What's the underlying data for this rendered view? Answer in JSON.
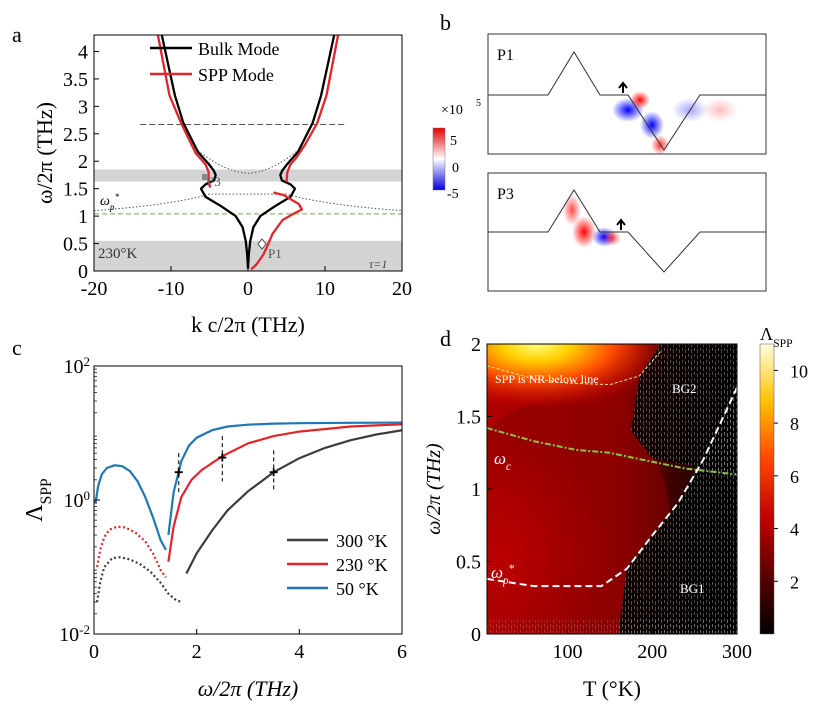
{
  "chart_data": [
    {
      "panel": "a",
      "type": "line",
      "xlabel": "k c/2π (THz)",
      "ylabel": "ω/2π (THz)",
      "xlim": [
        -20,
        20
      ],
      "ylim": [
        0,
        4.3
      ],
      "xticks": [
        "-20",
        "-10",
        "0",
        "10",
        "20"
      ],
      "yticks": [
        "0",
        "0.5",
        "1",
        "1.5",
        "2",
        "2.5",
        "3",
        "3.5",
        "4"
      ],
      "legend": [
        "Bulk Mode",
        "SPP Mode"
      ],
      "annotations": {
        "p1": "P1",
        "p3": "P3",
        "omega_p": "ωp*",
        "temp": "230°K",
        "tau": "τ=1"
      },
      "band_gaps": [
        [
          0,
          0.55
        ],
        [
          1.63,
          1.85
        ]
      ],
      "omega_p_level": 1.04,
      "dashed_level": 2.67,
      "series": [
        {
          "name": "Bulk Mode",
          "color": "#000000",
          "points": [
            [
              -11.2,
              4.3
            ],
            [
              -9.5,
              3.2
            ],
            [
              -8.4,
              2.7
            ],
            [
              -6.5,
              2.17
            ],
            [
              -5.1,
              1.95
            ],
            [
              -4.45,
              1.83
            ],
            [
              -4.2,
              1.75
            ],
            [
              -4.4,
              1.65
            ],
            [
              -5.5,
              1.58
            ],
            [
              -6.1,
              1.5
            ],
            [
              -5.5,
              1.35
            ],
            [
              -3.5,
              1.18
            ],
            [
              -1.6,
              1.0
            ],
            [
              -0.7,
              0.8
            ],
            [
              -0.3,
              0.55
            ],
            [
              -0.1,
              0.3
            ],
            [
              0,
              0.05
            ]
          ]
        },
        {
          "name": "Bulk Mode",
          "color": "#000000",
          "points": [
            [
              0,
              0.05
            ],
            [
              0.1,
              0.3
            ],
            [
              0.3,
              0.55
            ],
            [
              0.7,
              0.8
            ],
            [
              1.6,
              1.0
            ],
            [
              3.5,
              1.18
            ],
            [
              5.5,
              1.35
            ],
            [
              6.1,
              1.5
            ],
            [
              5.5,
              1.58
            ],
            [
              4.4,
              1.65
            ],
            [
              4.2,
              1.75
            ],
            [
              4.45,
              1.83
            ],
            [
              5.1,
              1.95
            ],
            [
              6.5,
              2.17
            ],
            [
              8.4,
              2.7
            ],
            [
              9.5,
              3.2
            ],
            [
              11.2,
              4.3
            ]
          ]
        },
        {
          "name": "SPP Mode",
          "color": "#e0262b",
          "points": [
            [
              -11.7,
              4.3
            ],
            [
              -10.2,
              3.2
            ],
            [
              -8.7,
              2.7
            ],
            [
              -6.8,
              2.15
            ],
            [
              -5.5,
              1.94
            ],
            [
              -5.1,
              1.8
            ],
            [
              -5.15,
              1.65
            ],
            [
              -4.9,
              1.52
            ]
          ]
        },
        {
          "name": "SPP Mode",
          "color": "#e0262b",
          "points": [
            [
              0.4,
              0.03
            ],
            [
              1.1,
              0.12
            ],
            [
              2.0,
              0.3
            ],
            [
              2.4,
              0.42
            ],
            [
              3.2,
              0.68
            ],
            [
              4.5,
              0.93
            ],
            [
              6.0,
              1.05
            ],
            [
              7.0,
              1.12
            ],
            [
              6.6,
              1.22
            ],
            [
              5.4,
              1.32
            ],
            [
              4.7,
              1.38
            ],
            [
              3.3,
              1.43
            ]
          ]
        },
        {
          "name": "SPP Mode",
          "color": "#e0262b",
          "points": [
            [
              11.7,
              4.3
            ],
            [
              10.2,
              3.2
            ],
            [
              9.0,
              2.7
            ],
            [
              7.4,
              2.3
            ],
            [
              6.2,
              2.05
            ],
            [
              5.5,
              1.94
            ],
            [
              5.1,
              1.8
            ],
            [
              5.0,
              1.62
            ]
          ]
        }
      ]
    },
    {
      "panel": "b",
      "type": "heatmap",
      "colorbar_label": "×10",
      "colorbar_exponent": "5",
      "colorbar_ticks": [
        "5",
        "0",
        "-5"
      ],
      "clim": [
        -7,
        7
      ],
      "subpanels": [
        "P1",
        "P3"
      ]
    },
    {
      "panel": "c",
      "type": "line",
      "xlabel": "ω/2π (THz)",
      "ylabel": "ΛSPP",
      "yscale": "log",
      "xlim": [
        0,
        6
      ],
      "ylim": [
        0.01,
        100
      ],
      "xticks": [
        "0",
        "2",
        "4",
        "6"
      ],
      "yticks": [
        "10",
        "10",
        "10"
      ],
      "ytick_exponents": [
        "-2",
        "0",
        "2"
      ],
      "legend": [
        "300 °K",
        "230 °K",
        "50 °K"
      ],
      "series": [
        {
          "name": "300 °K",
          "color": "#3d3d3d",
          "x": [
            0.06,
            0.12,
            0.2,
            0.35,
            0.5,
            0.7,
            0.9,
            1.1,
            1.3,
            1.45,
            1.6,
            1.7
          ],
          "y": [
            0.03,
            0.06,
            0.1,
            0.135,
            0.14,
            0.13,
            0.11,
            0.085,
            0.058,
            0.04,
            0.032,
            0.03
          ],
          "x2": [
            1.8,
            2.0,
            2.3,
            2.6,
            3.0,
            3.5,
            4.0,
            4.5,
            5.0,
            5.5,
            6.0
          ],
          "y2": [
            0.08,
            0.16,
            0.35,
            0.7,
            1.35,
            2.6,
            4.2,
            6.0,
            7.8,
            9.5,
            11.0
          ]
        },
        {
          "name": "230 °K",
          "color": "#e0262b",
          "x": [
            0.06,
            0.12,
            0.2,
            0.3,
            0.45,
            0.6,
            0.8,
            1.0,
            1.15,
            1.3,
            1.4
          ],
          "y": [
            0.1,
            0.18,
            0.28,
            0.36,
            0.4,
            0.39,
            0.33,
            0.24,
            0.16,
            0.09,
            0.07
          ],
          "x2": [
            1.45,
            1.55,
            1.7,
            1.9,
            2.1,
            2.5,
            3.0,
            3.5,
            4.0,
            5.0,
            6.0
          ],
          "y2": [
            0.12,
            0.4,
            1.1,
            2.0,
            2.8,
            4.5,
            7.0,
            9.0,
            10.5,
            12.5,
            13.5
          ]
        },
        {
          "name": "50 °K",
          "color": "#1f77b4",
          "x": [
            0.03,
            0.08,
            0.15,
            0.25,
            0.4,
            0.55,
            0.7,
            0.85,
            1.0,
            1.15,
            1.3,
            1.4
          ],
          "y": [
            0.9,
            1.6,
            2.4,
            3.0,
            3.3,
            3.2,
            2.7,
            1.9,
            1.1,
            0.55,
            0.25,
            0.18
          ],
          "x2": [
            1.45,
            1.55,
            1.7,
            1.85,
            2.0,
            2.3,
            2.6,
            3.0,
            3.5,
            4.0,
            5.0,
            6.0
          ],
          "y2": [
            0.3,
            1.3,
            3.8,
            6.5,
            8.5,
            11.0,
            12.5,
            13.3,
            13.8,
            14.0,
            14.2,
            14.3
          ]
        }
      ],
      "markers": [
        {
          "x": 1.65,
          "y": 2.6,
          "lo": 1.3,
          "hi": 5.0
        },
        {
          "x": 2.5,
          "y": 4.3,
          "lo": 1.9,
          "hi": 9.0
        },
        {
          "x": 3.5,
          "y": 2.6,
          "lo": 1.3,
          "hi": 5.5
        }
      ]
    },
    {
      "panel": "d",
      "type": "heatmap",
      "xlabel": "T (°K)",
      "ylabel": "ω/2π (THz)",
      "xlim": [
        5,
        300
      ],
      "ylim": [
        0,
        2
      ],
      "xticks": [
        "100",
        "200",
        "300"
      ],
      "yticks": [
        "0",
        "0.5",
        "1",
        "1.5",
        "2"
      ],
      "colorbar_label": "ΛSPP",
      "colorbar_ticks": [
        "2",
        "4",
        "6",
        "8",
        "10"
      ],
      "clim": [
        0,
        11
      ],
      "annotations": {
        "nr": "SPP is NR below line",
        "bg1": "BG1",
        "bg2": "BG2",
        "omega_c": "ωc",
        "omega_p": "ωp*"
      },
      "nr_line": [
        [
          5,
          1.85
        ],
        [
          60,
          1.76
        ],
        [
          100,
          1.73
        ],
        [
          150,
          1.72
        ],
        [
          185,
          1.78
        ],
        [
          210,
          1.95
        ]
      ],
      "omega_c_line": [
        [
          5,
          1.42
        ],
        [
          60,
          1.33
        ],
        [
          110,
          1.27
        ],
        [
          150,
          1.25
        ],
        [
          190,
          1.2
        ],
        [
          240,
          1.14
        ],
        [
          300,
          1.1
        ]
      ],
      "omega_p_line": [
        [
          5,
          0.38
        ],
        [
          60,
          0.33
        ],
        [
          100,
          0.33
        ],
        [
          140,
          0.33
        ],
        [
          170,
          0.45
        ],
        [
          200,
          0.68
        ],
        [
          230,
          0.9
        ],
        [
          260,
          1.2
        ],
        [
          280,
          1.45
        ],
        [
          300,
          1.7
        ]
      ]
    }
  ]
}
